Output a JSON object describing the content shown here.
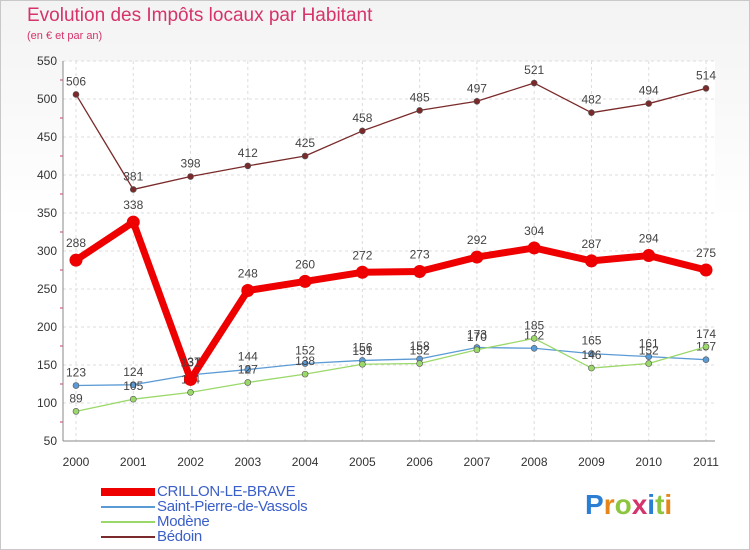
{
  "chart_data": {
    "type": "line",
    "title": "Evolution des Impôts locaux par Habitant",
    "subtitle": "(en € et par an)",
    "xlabel": "",
    "ylabel": "",
    "ylim": [
      50,
      550
    ],
    "yticks": [
      "50",
      "100",
      "150",
      "200",
      "250",
      "300",
      "350",
      "400",
      "450",
      "500",
      "550"
    ],
    "categories": [
      "2000",
      "2001",
      "2002",
      "2003",
      "2004",
      "2005",
      "2006",
      "2007",
      "2008",
      "2009",
      "2010",
      "2011"
    ],
    "grid": true,
    "legend_position": "bottom-left",
    "series": [
      {
        "name": "Saint-Pierre-de-Vassols",
        "color": "#5b9bd5",
        "values": [
          123,
          124,
          137,
          144,
          152,
          156,
          158,
          173,
          172,
          165,
          161,
          157
        ],
        "labels": [
          "123",
          "124",
          "137",
          "144",
          "152",
          "156",
          "158",
          "173",
          "172",
          "165",
          "161",
          "157"
        ]
      },
      {
        "name": "Modène",
        "color": "#9bd86a",
        "values": [
          89,
          105,
          114,
          127,
          138,
          151,
          152,
          170,
          185,
          146,
          152,
          174
        ],
        "labels": [
          "89",
          "105",
          "114",
          "127",
          "138",
          "151",
          "152",
          "170",
          "185",
          "146",
          "152",
          "174"
        ]
      },
      {
        "name": "Bédoin",
        "color": "#7a2a2a",
        "values": [
          506,
          381,
          398,
          412,
          425,
          458,
          485,
          497,
          521,
          482,
          494,
          514
        ],
        "labels": [
          "506",
          "381",
          "398",
          "412",
          "425",
          "458",
          "485",
          "497",
          "521",
          "482",
          "494",
          "514"
        ]
      },
      {
        "name": "CRILLON-LE-BRAVE",
        "color": "#ee0000",
        "values": [
          288,
          338,
          131,
          248,
          260,
          272,
          273,
          292,
          304,
          287,
          294,
          275
        ],
        "labels": [
          "288",
          "338",
          "131",
          "248",
          "260",
          "272",
          "273",
          "292",
          "304",
          "287",
          "294",
          "275"
        ]
      }
    ],
    "legend_order": [
      "CRILLON-LE-BRAVE",
      "Saint-Pierre-de-Vassols",
      "Modène",
      "Bédoin"
    ]
  },
  "logo": {
    "text": "Proxiti",
    "letter_colors": [
      "#2a7fd4",
      "#e6861a",
      "#8cc63f",
      "#d6336c",
      "#2a7fd4",
      "#8cc63f",
      "#e6861a"
    ]
  }
}
